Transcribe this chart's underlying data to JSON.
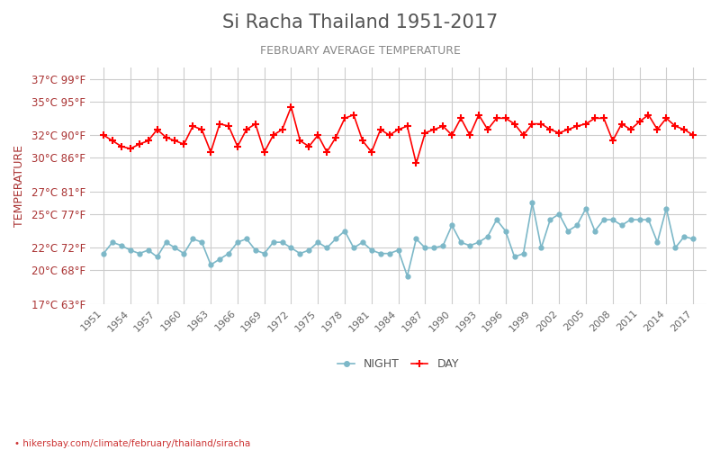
{
  "title": "Si Racha Thailand 1951-2017",
  "subtitle": "FEBRUARY AVERAGE TEMPERATURE",
  "ylabel": "TEMPERATURE",
  "footer": "hikersbay.com/climate/february/thailand/siracha",
  "background_color": "#ffffff",
  "plot_bg_color": "#ffffff",
  "grid_color": "#cccccc",
  "years": [
    1951,
    1952,
    1953,
    1954,
    1955,
    1956,
    1957,
    1958,
    1959,
    1960,
    1961,
    1962,
    1963,
    1964,
    1965,
    1966,
    1967,
    1968,
    1969,
    1970,
    1971,
    1972,
    1973,
    1974,
    1975,
    1976,
    1977,
    1978,
    1979,
    1980,
    1981,
    1982,
    1983,
    1984,
    1985,
    1986,
    1987,
    1988,
    1989,
    1990,
    1991,
    1992,
    1993,
    1994,
    1995,
    1996,
    1997,
    1998,
    1999,
    2000,
    2001,
    2002,
    2003,
    2004,
    2005,
    2006,
    2007,
    2008,
    2009,
    2010,
    2011,
    2012,
    2013,
    2014,
    2015,
    2016,
    2017
  ],
  "day_temps": [
    32.0,
    31.5,
    31.0,
    30.8,
    31.2,
    31.5,
    32.5,
    31.8,
    31.5,
    31.2,
    32.8,
    32.5,
    30.5,
    33.0,
    32.8,
    31.0,
    32.5,
    33.0,
    30.5,
    32.0,
    32.5,
    34.5,
    31.5,
    31.0,
    32.0,
    30.5,
    31.8,
    33.5,
    33.8,
    31.5,
    30.5,
    32.5,
    32.0,
    32.5,
    32.8,
    29.5,
    32.2,
    32.5,
    32.8,
    32.0,
    33.5,
    32.0,
    33.8,
    32.5,
    33.5,
    33.5,
    33.0,
    32.0,
    33.0,
    33.0,
    32.5,
    32.2,
    32.5,
    32.8,
    33.0,
    33.5,
    33.5,
    31.5,
    33.0,
    32.5,
    33.2,
    33.8,
    32.5,
    33.5,
    32.8,
    32.5,
    32.0
  ],
  "night_temps": [
    21.5,
    22.5,
    22.2,
    21.8,
    21.5,
    21.8,
    21.2,
    22.5,
    22.0,
    21.5,
    22.8,
    22.5,
    20.5,
    21.0,
    21.5,
    22.5,
    22.8,
    21.8,
    21.5,
    22.5,
    22.5,
    22.0,
    21.5,
    21.8,
    22.5,
    22.0,
    22.8,
    23.5,
    22.0,
    22.5,
    21.8,
    21.5,
    21.5,
    21.8,
    19.5,
    22.8,
    22.0,
    22.0,
    22.2,
    24.0,
    22.5,
    22.2,
    22.5,
    23.0,
    24.5,
    23.5,
    21.2,
    21.5,
    26.0,
    22.0,
    24.5,
    25.0,
    23.5,
    24.0,
    25.5,
    23.5,
    24.5,
    24.5,
    24.0,
    24.5,
    24.5,
    24.5,
    22.5,
    25.5,
    22.0,
    23.0,
    22.8
  ],
  "day_color": "#ff0000",
  "night_color": "#7db8c8",
  "ylim_min": 17,
  "ylim_max": 38,
  "yticks_c": [
    17,
    20,
    22,
    25,
    27,
    30,
    32,
    35,
    37
  ],
  "yticks_f": [
    63,
    68,
    72,
    77,
    81,
    86,
    90,
    95,
    99
  ],
  "xticks": [
    1951,
    1954,
    1957,
    1960,
    1963,
    1966,
    1969,
    1972,
    1975,
    1978,
    1981,
    1984,
    1987,
    1990,
    1993,
    1996,
    1999,
    2002,
    2005,
    2008,
    2011,
    2014,
    2017
  ],
  "title_color": "#555555",
  "subtitle_color": "#888888",
  "label_color": "#aa3333",
  "tick_color": "#aaaaaa"
}
